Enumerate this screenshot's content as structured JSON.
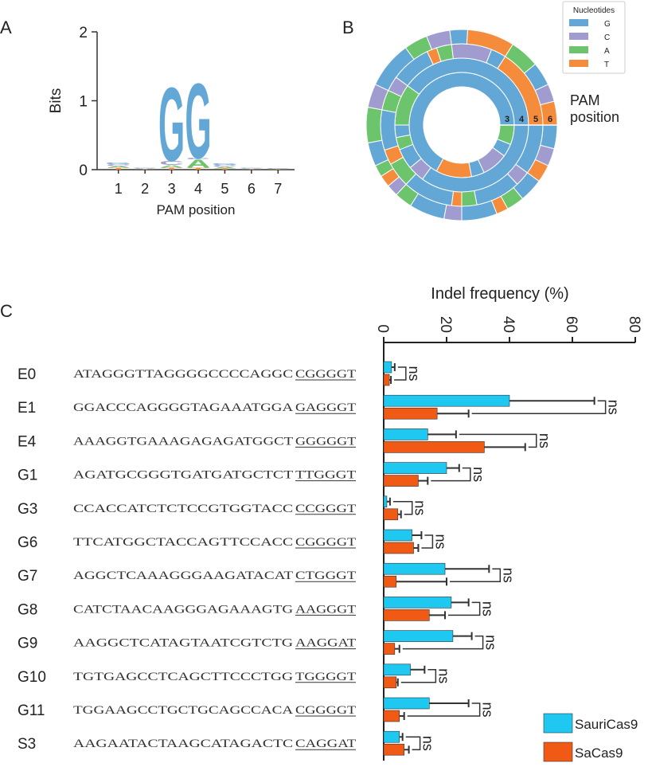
{
  "panel_labels": [
    "A",
    "B",
    "C"
  ],
  "chart_data": [
    {
      "type": "logo",
      "ylabel": "Bits",
      "xlabel": "PAM position",
      "categories": [
        "1",
        "2",
        "3",
        "4",
        "5",
        "6",
        "7"
      ],
      "ylim": [
        0,
        2
      ],
      "yticks": [
        0,
        1,
        2
      ],
      "series": [
        {
          "name": "T",
          "color": "#f58c3c",
          "values": [
            0.03,
            0.01,
            0.03,
            0.03,
            0.02,
            0.01,
            0.005
          ]
        },
        {
          "name": "A",
          "color": "#6cc46c",
          "values": [
            0.02,
            0.01,
            0.04,
            0.12,
            0.02,
            0.01,
            0.005
          ]
        },
        {
          "name": "C",
          "color": "#a09ccf",
          "values": [
            0.03,
            0.01,
            0.06,
            0.02,
            0.03,
            0.01,
            0.01
          ]
        },
        {
          "name": "G",
          "color": "#63a7d6",
          "values": [
            0.02,
            0.01,
            1.1,
            1.12,
            0.02,
            0.01,
            0.01
          ]
        }
      ]
    },
    {
      "type": "sunburst",
      "legend_title": "Nucleotides",
      "annotation": "PAM position",
      "legend": [
        {
          "name": "G",
          "color": "#63a7d6"
        },
        {
          "name": "C",
          "color": "#a09ccf"
        },
        {
          "name": "A",
          "color": "#6cc46c"
        },
        {
          "name": "T",
          "color": "#f58c3c"
        }
      ],
      "rings": [
        {
          "label": "3",
          "segments": [
            {
              "nucleotide": "A",
              "value": 6
            },
            {
              "nucleotide": "G",
              "value": 4
            },
            {
              "nucleotide": "C",
              "value": 8
            },
            {
              "nucleotide": "G",
              "value": 4
            },
            {
              "nucleotide": "T",
              "value": 11
            },
            {
              "nucleotide": "G",
              "value": 67
            }
          ]
        },
        {
          "label": "4",
          "segments": [
            {
              "nucleotide": "G",
              "value": 35
            },
            {
              "nucleotide": "C",
              "value": 4
            },
            {
              "nucleotide": "G",
              "value": 5
            },
            {
              "nucleotide": "A",
              "value": 3
            },
            {
              "nucleotide": "G",
              "value": 3
            },
            {
              "nucleotide": "A",
              "value": 10
            },
            {
              "nucleotide": "G",
              "value": 40
            }
          ]
        },
        {
          "label": "5",
          "segments": [
            {
              "nucleotide": "G",
              "value": 10
            },
            {
              "nucleotide": "C",
              "value": 3
            },
            {
              "nucleotide": "G",
              "value": 9
            },
            {
              "nucleotide": "A",
              "value": 3
            },
            {
              "nucleotide": "T",
              "value": 2
            },
            {
              "nucleotide": "G",
              "value": 10
            },
            {
              "nucleotide": "A",
              "value": 5
            },
            {
              "nucleotide": "T",
              "value": 3
            },
            {
              "nucleotide": "G",
              "value": 8
            },
            {
              "nucleotide": "A",
              "value": 4
            },
            {
              "nucleotide": "C",
              "value": 3
            },
            {
              "nucleotide": "G",
              "value": 8
            },
            {
              "nucleotide": "T",
              "value": 2
            },
            {
              "nucleotide": "A",
              "value": 3
            },
            {
              "nucleotide": "C",
              "value": 8
            },
            {
              "nucleotide": "G",
              "value": 3
            },
            {
              "nucleotide": "T",
              "value": 16
            }
          ]
        },
        {
          "label": "6",
          "segments": [
            {
              "nucleotide": "G",
              "value": 4
            },
            {
              "nucleotide": "C",
              "value": 3
            },
            {
              "nucleotide": "T",
              "value": 3
            },
            {
              "nucleotide": "G",
              "value": 4
            },
            {
              "nucleotide": "A",
              "value": 3
            },
            {
              "nucleotide": "T",
              "value": 2
            },
            {
              "nucleotide": "G",
              "value": 6
            },
            {
              "nucleotide": "C",
              "value": 3
            },
            {
              "nucleotide": "G",
              "value": 6
            },
            {
              "nucleotide": "A",
              "value": 3
            },
            {
              "nucleotide": "C",
              "value": 2
            },
            {
              "nucleotide": "T",
              "value": 2
            },
            {
              "nucleotide": "A",
              "value": 2
            },
            {
              "nucleotide": "G",
              "value": 4
            },
            {
              "nucleotide": "A",
              "value": 6
            },
            {
              "nucleotide": "C",
              "value": 4
            },
            {
              "nucleotide": "G",
              "value": 8
            },
            {
              "nucleotide": "A",
              "value": 4
            },
            {
              "nucleotide": "C",
              "value": 4
            },
            {
              "nucleotide": "G",
              "value": 3
            },
            {
              "nucleotide": "T",
              "value": 8
            },
            {
              "nucleotide": "A",
              "value": 5
            },
            {
              "nucleotide": "G",
              "value": 4
            },
            {
              "nucleotide": "C",
              "value": 3
            },
            {
              "nucleotide": "T",
              "value": 4
            }
          ]
        }
      ]
    },
    {
      "type": "hbar",
      "title": "Indel frequency (%)",
      "xlim": [
        0,
        80
      ],
      "xticks": [
        0,
        20,
        40,
        60,
        80
      ],
      "legend": "bottom-right",
      "categories": [
        "E0",
        "E1",
        "E4",
        "G1",
        "G3",
        "G6",
        "G7",
        "G8",
        "G9",
        "G10",
        "G11",
        "S3"
      ],
      "sequences": [
        {
          "spacer": "ATAGGGTTAGGGGCCCCAGGC",
          "pam": "CGGGGT"
        },
        {
          "spacer": "GGACCCAGGGGTAGAAATGGA",
          "pam": "GAGGGT"
        },
        {
          "spacer": "AAAGGTGAAAGAGAGATGGCT",
          "pam": "GGGGGT"
        },
        {
          "spacer": "AGATGCGGGTGATGATGCTCT",
          "pam": "TTGGGT"
        },
        {
          "spacer": "CCACCATCTCTCCGTGGTACC",
          "pam": "CCGGGT"
        },
        {
          "spacer": "TTCATGGCTACCAGTTCCACC",
          "pam": "CGGGGT"
        },
        {
          "spacer": "AGGCTCAAAGGGAAGATACAT",
          "pam": "CTGGGT"
        },
        {
          "spacer": "CATCTAACAAGGGAGAAAGTG",
          "pam": "AAGGGT"
        },
        {
          "spacer": "AAGGCTCATAGTAATCGTCTG",
          "pam": "AAGGAT"
        },
        {
          "spacer": "TGTGAGCCTCAGCTTCCCTGG",
          "pam": "TGGGGT"
        },
        {
          "spacer": "TGGAAGCCTGCTGCAGCCACA",
          "pam": "CGGGGT"
        },
        {
          "spacer": "AAGAATACTAAGCATAGACTC",
          "pam": "CAGGAT"
        }
      ],
      "series": [
        {
          "name": "SauriCas9",
          "color": "#1ec8f0",
          "values": [
            2.5,
            40,
            14,
            20,
            1,
            9,
            19.5,
            21.5,
            22,
            8.5,
            14.5,
            5
          ],
          "errors": [
            1,
            27,
            9,
            4,
            1,
            3,
            14,
            5.5,
            6,
            4.5,
            12.5,
            1
          ]
        },
        {
          "name": "SaCas9",
          "color": "#f05a14",
          "values": [
            1.8,
            17,
            32,
            11,
            4.5,
            9.5,
            4,
            14.5,
            3.5,
            4,
            5,
            6.5
          ],
          "errors": [
            0.5,
            10,
            13,
            3,
            1,
            1.5,
            16,
            5,
            1.5,
            0.5,
            1.5,
            1.5
          ]
        }
      ],
      "significance": [
        "ns",
        "ns",
        "ns",
        "ns",
        "ns",
        "ns",
        "ns",
        "ns",
        "ns",
        "ns",
        "ns",
        "ns"
      ]
    }
  ]
}
